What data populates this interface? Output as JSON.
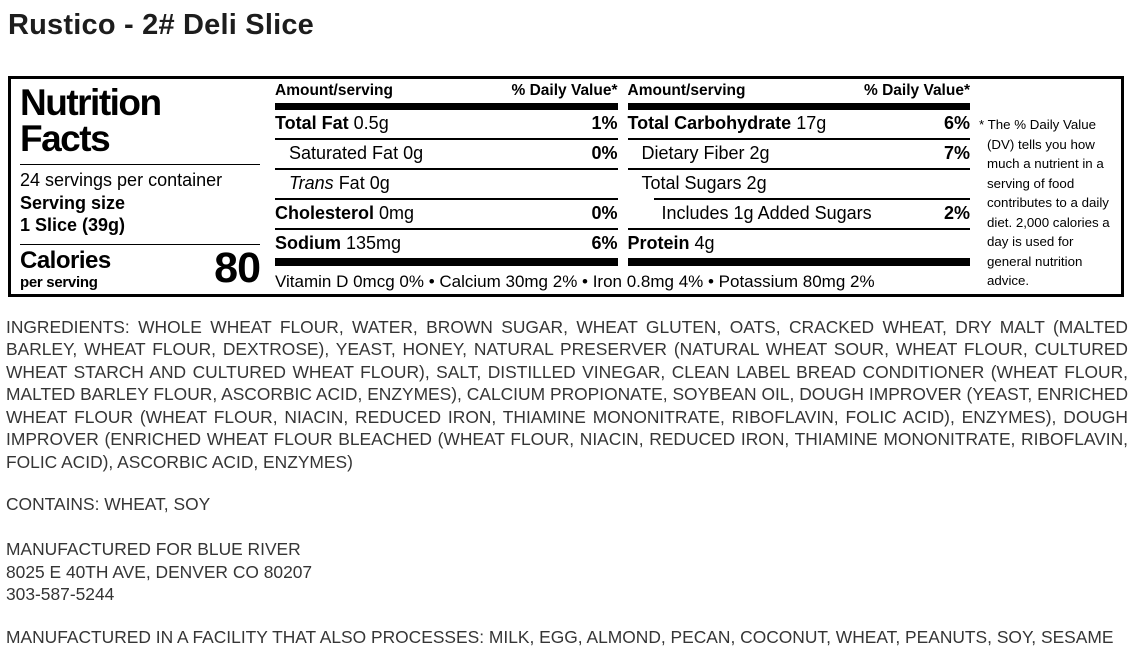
{
  "page_title": "Rustico - 2# Deli Slice",
  "colors": {
    "panel_ink": "#000000",
    "body_text": "#353535",
    "title_text": "#1d1d1d",
    "background": "#ffffff"
  },
  "nutrition_panel": {
    "title_line1": "Nutrition",
    "title_line2": "Facts",
    "servings_per_container": "24 servings per container",
    "serving_size_label": "Serving size",
    "serving_size_value": "1 Slice (39g)",
    "calories_label": "Calories",
    "calories_sublabel": "per serving",
    "calories_value": "80",
    "column_header_amount": "Amount/serving",
    "column_header_dv": "% Daily Value*",
    "left_rows": [
      {
        "italic": "",
        "bold": "Total Fat",
        "rest": " 0.5g",
        "dv": "1%"
      },
      {
        "italic": "",
        "bold": "",
        "rest": "Saturated Fat 0g",
        "dv": "0%"
      },
      {
        "italic": "Trans",
        "bold": "",
        "rest": " Fat 0g",
        "dv": ""
      },
      {
        "italic": "",
        "bold": "Cholesterol",
        "rest": " 0mg",
        "dv": "0%"
      },
      {
        "italic": "",
        "bold": "Sodium",
        "rest": " 135mg",
        "dv": "6%"
      }
    ],
    "right_rows": [
      {
        "italic": "",
        "bold": "Total Carbohydrate",
        "rest": " 17g",
        "dv": "6%"
      },
      {
        "italic": "",
        "bold": "",
        "rest": "Dietary Fiber 2g",
        "dv": "7%"
      },
      {
        "italic": "",
        "bold": "",
        "rest": "Total Sugars 2g",
        "dv": ""
      },
      {
        "italic": "",
        "bold": "",
        "rest": "Includes 1g Added Sugars",
        "dv": "2%"
      },
      {
        "italic": "",
        "bold": "Protein",
        "rest": " 4g",
        "dv": ""
      }
    ],
    "vitamins_line": "Vitamin D 0mcg 0% • Calcium 30mg 2% • Iron 0.8mg 4% • Potassium 80mg 2%",
    "footnote": "* The % Daily Value (DV) tells you how much a nutrient in a serving of food contributes to a daily diet. 2,000 calories a day is used for general nutrition advice."
  },
  "ingredients": "INGREDIENTS: WHOLE WHEAT FLOUR, WATER, BROWN SUGAR, WHEAT GLUTEN, OATS, CRACKED WHEAT, DRY MALT (MALTED BARLEY, WHEAT FLOUR, DEXTROSE), YEAST, HONEY, NATURAL PRESERVER (NATURAL WHEAT SOUR, WHEAT FLOUR, CULTURED WHEAT STARCH AND CULTURED WHEAT FLOUR), SALT, DISTILLED VINEGAR, CLEAN LABEL BREAD CONDITIONER (WHEAT FLOUR, MALTED BARLEY FLOUR, ASCORBIC ACID, ENZYMES), CALCIUM PROPIONATE, SOYBEAN OIL, DOUGH IMPROVER (YEAST, ENRICHED WHEAT FLOUR (WHEAT FLOUR, NIACIN, REDUCED IRON, THIAMINE MONONITRATE, RIBOFLAVIN, FOLIC ACID), ENZYMES), DOUGH IMPROVER (ENRICHED WHEAT FLOUR BLEACHED (WHEAT FLOUR, NIACIN, REDUCED IRON, THIAMINE MONONITRATE, RIBOFLAVIN, FOLIC ACID), ASCORBIC ACID, ENZYMES)",
  "contains": "CONTAINS: WHEAT, SOY",
  "manufactured_for": [
    "MANUFACTURED FOR BLUE RIVER",
    "8025 E 40TH AVE, DENVER CO 80207",
    "303-587-5244"
  ],
  "facility": "MANUFACTURED IN A FACILITY THAT ALSO PROCESSES: MILK, EGG, ALMOND, PECAN, COCONUT, WHEAT, PEANUTS, SOY, SESAME"
}
